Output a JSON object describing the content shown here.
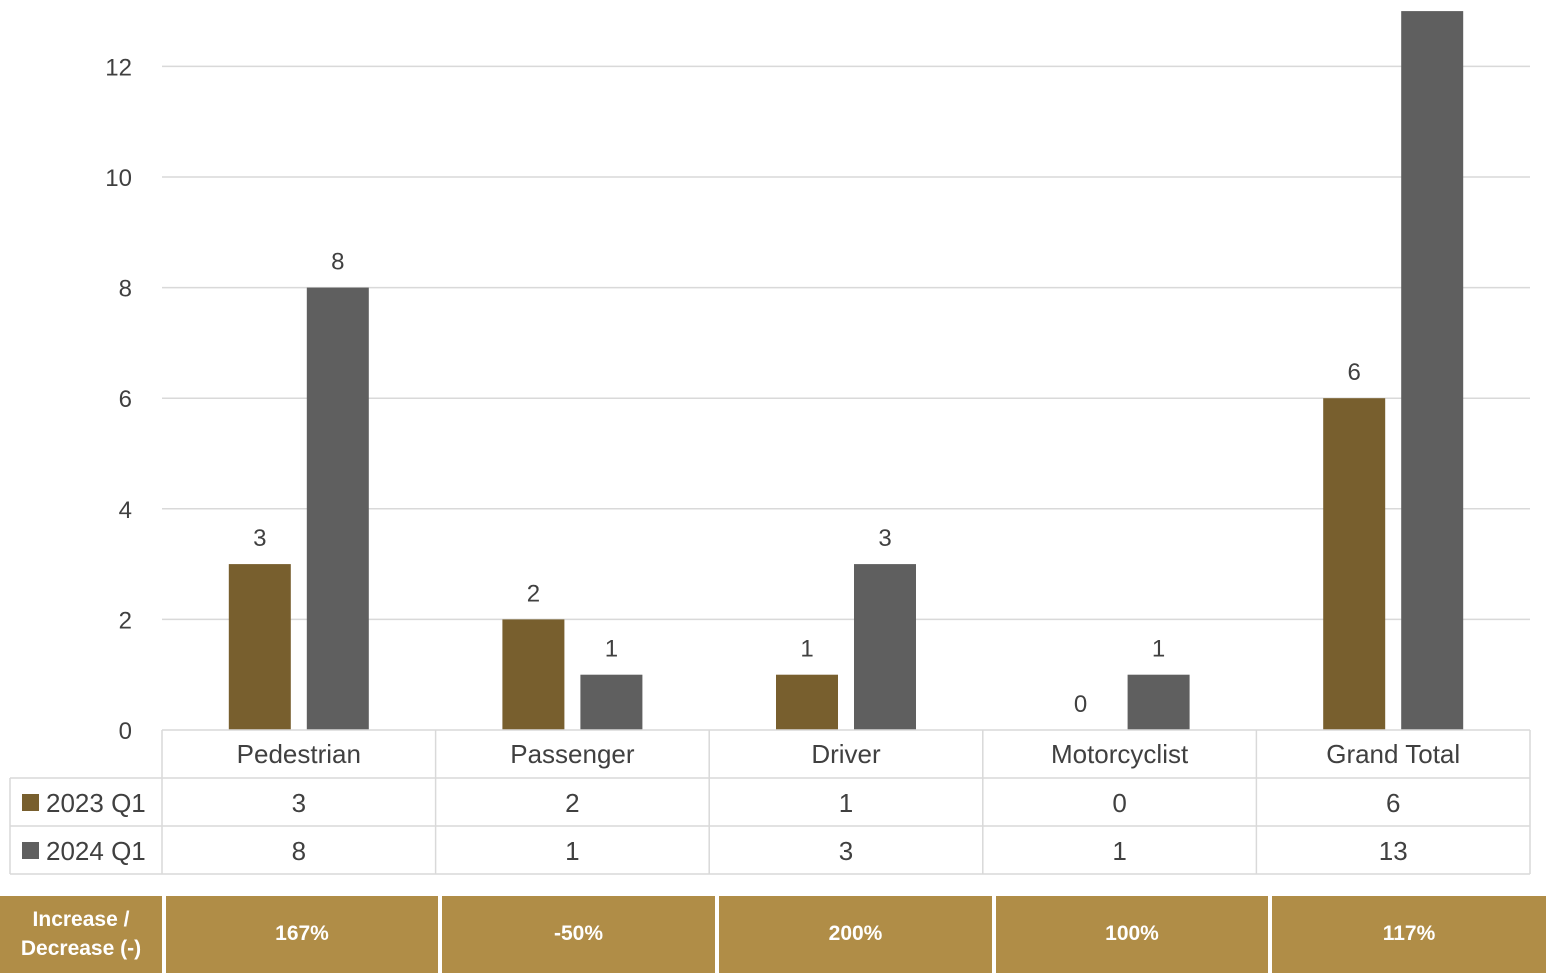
{
  "chart_data": {
    "type": "bar",
    "categories": [
      "Pedestrian",
      "Passenger",
      "Driver",
      "Motorcyclist",
      "Grand Total"
    ],
    "series": [
      {
        "name": "2023 Q1",
        "values": [
          3,
          2,
          1,
          0,
          6
        ],
        "color": "#785F2E"
      },
      {
        "name": "2024 Q1",
        "values": [
          8,
          1,
          3,
          1,
          13
        ],
        "color": "#5F5F5F"
      }
    ],
    "ylim": [
      0,
      13
    ],
    "yticks": [
      0,
      2,
      4,
      6,
      8,
      10,
      12
    ],
    "grid": true,
    "legend": "data-table"
  },
  "change_row": {
    "label": "Increase / Decrease (-)",
    "values": [
      "167%",
      "-50%",
      "200%",
      "100%",
      "117%"
    ],
    "color": "#B08D47"
  }
}
